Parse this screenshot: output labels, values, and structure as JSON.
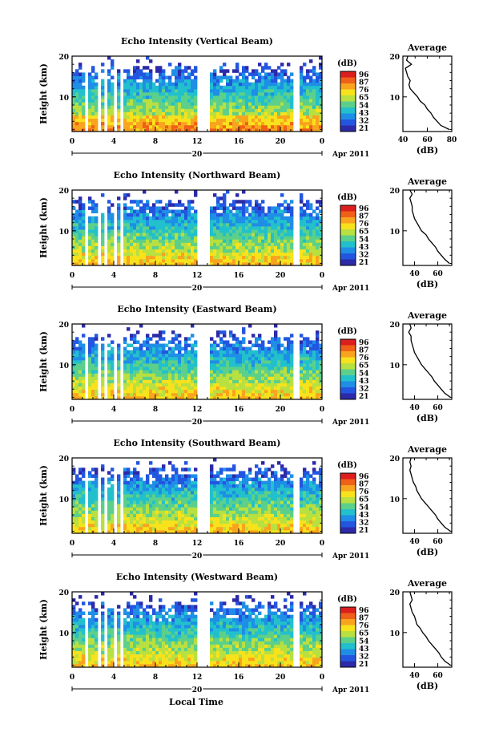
{
  "figure": {
    "xlabel": "Local Time",
    "date_label": "20",
    "month_label": "Apr 2011"
  },
  "colorbar": {
    "unit": "(dB)",
    "ticks": [
      "96",
      "87",
      "76",
      "65",
      "54",
      "43",
      "32",
      "21"
    ],
    "colors": [
      "#dc1e1e",
      "#f06018",
      "#f9a41e",
      "#f7e21c",
      "#b8e040",
      "#5cd08a",
      "#22c0cc",
      "#1e8ee6",
      "#2356e0",
      "#2c2aa8"
    ]
  },
  "chart_data": [
    {
      "type": "heatmap",
      "title": "Echo Intensity (Vertical Beam)",
      "ylabel": "Height (km)",
      "x_ticks": [
        "0",
        "4",
        "8",
        "12",
        "16",
        "20",
        "0"
      ],
      "y_ticks": [
        "20",
        "10"
      ],
      "xlim": [
        0,
        24
      ],
      "ylim": [
        1.5,
        20
      ],
      "clim": [
        21,
        96
      ],
      "profile": {
        "title": "Average",
        "xlabel": "(dB)",
        "x_ticks": [
          "40",
          "60",
          "80"
        ],
        "xlim": [
          40,
          80
        ],
        "height": [
          2,
          3,
          4,
          5,
          6,
          7,
          8,
          9,
          10,
          11,
          12,
          13,
          14,
          15,
          16,
          17,
          18,
          19,
          20
        ],
        "values": [
          78,
          71,
          68,
          65,
          63,
          60,
          58,
          54,
          52,
          49,
          46,
          45,
          46,
          44,
          43,
          42,
          47,
          43,
          44
        ]
      }
    },
    {
      "type": "heatmap",
      "title": "Echo Intensity (Northward Beam)",
      "ylabel": "Height (km)",
      "x_ticks": [
        "0",
        "4",
        "8",
        "12",
        "16",
        "20",
        "0"
      ],
      "y_ticks": [
        "20",
        "10"
      ],
      "xlim": [
        0,
        24
      ],
      "ylim": [
        1.5,
        20
      ],
      "clim": [
        21,
        96
      ],
      "profile": {
        "title": "Average",
        "xlabel": "(dB)",
        "x_ticks": [
          "40",
          "60"
        ],
        "xlim": [
          30,
          72
        ],
        "height": [
          2,
          3,
          4,
          5,
          6,
          7,
          8,
          9,
          10,
          11,
          12,
          13,
          14,
          15,
          16,
          17,
          18,
          19,
          20
        ],
        "values": [
          70,
          66,
          63,
          60,
          58,
          55,
          52,
          50,
          46,
          44,
          42,
          40,
          39,
          38,
          38,
          37,
          36,
          38,
          36
        ]
      }
    },
    {
      "type": "heatmap",
      "title": "Echo Intensity (Eastward Beam)",
      "ylabel": "Height (km)",
      "x_ticks": [
        "0",
        "4",
        "8",
        "12",
        "16",
        "20",
        "0"
      ],
      "y_ticks": [
        "20",
        "10"
      ],
      "xlim": [
        0,
        24
      ],
      "ylim": [
        1.5,
        20
      ],
      "clim": [
        21,
        96
      ],
      "profile": {
        "title": "Average",
        "xlabel": "(dB)",
        "x_ticks": [
          "40",
          "60"
        ],
        "xlim": [
          30,
          72
        ],
        "height": [
          2,
          3,
          4,
          5,
          6,
          7,
          8,
          9,
          10,
          11,
          12,
          13,
          14,
          15,
          16,
          17,
          18,
          19,
          20
        ],
        "values": [
          71,
          66,
          63,
          60,
          57,
          55,
          52,
          49,
          46,
          44,
          42,
          40,
          39,
          38,
          37,
          37,
          35,
          37,
          36
        ]
      }
    },
    {
      "type": "heatmap",
      "title": "Echo Intensity (Southward Beam)",
      "ylabel": "Height (km)",
      "x_ticks": [
        "0",
        "4",
        "8",
        "12",
        "16",
        "20",
        "0"
      ],
      "y_ticks": [
        "20",
        "10"
      ],
      "xlim": [
        0,
        24
      ],
      "ylim": [
        1.5,
        20
      ],
      "clim": [
        21,
        96
      ],
      "profile": {
        "title": "Average",
        "xlabel": "(dB)",
        "x_ticks": [
          "40",
          "60"
        ],
        "xlim": [
          30,
          72
        ],
        "height": [
          2,
          3,
          4,
          5,
          6,
          7,
          8,
          9,
          10,
          11,
          12,
          13,
          14,
          15,
          16,
          17,
          18,
          19,
          20
        ],
        "values": [
          71,
          66,
          63,
          60,
          58,
          55,
          52,
          49,
          46,
          44,
          42,
          41,
          39,
          38,
          37,
          36,
          37,
          36,
          37
        ]
      }
    },
    {
      "type": "heatmap",
      "title": "Echo Intensity (Westward Beam)",
      "ylabel": "Height (km)",
      "x_ticks": [
        "0",
        "4",
        "8",
        "12",
        "16",
        "20",
        "0"
      ],
      "y_ticks": [
        "20",
        "10"
      ],
      "xlim": [
        0,
        24
      ],
      "ylim": [
        1.5,
        20
      ],
      "clim": [
        21,
        96
      ],
      "profile": {
        "title": "Average",
        "xlabel": "(dB)",
        "x_ticks": [
          "40",
          "60"
        ],
        "xlim": [
          30,
          72
        ],
        "height": [
          2,
          3,
          4,
          5,
          6,
          7,
          8,
          9,
          10,
          11,
          12,
          13,
          14,
          15,
          16,
          17,
          18,
          19,
          20
        ],
        "values": [
          71,
          66,
          63,
          61,
          58,
          55,
          52,
          50,
          47,
          45,
          42,
          41,
          40,
          38,
          37,
          36,
          38,
          37,
          36
        ]
      }
    }
  ]
}
